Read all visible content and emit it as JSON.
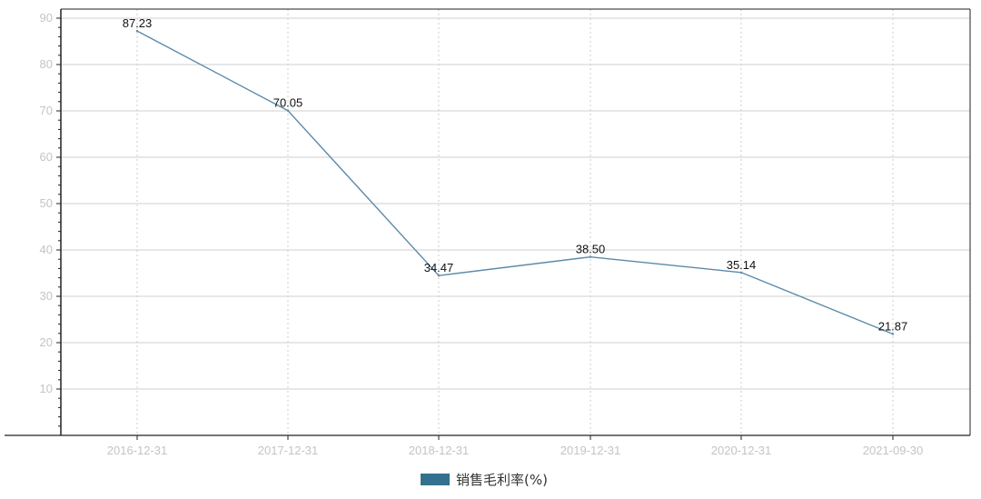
{
  "chart_data": {
    "type": "line",
    "title": "",
    "xlabel": "",
    "ylabel": "",
    "categories": [
      "2016-12-31",
      "2017-12-31",
      "2018-12-31",
      "2019-12-31",
      "2020-12-31",
      "2021-09-30"
    ],
    "series": [
      {
        "name": "销售毛利率(%)",
        "values": [
          87.23,
          70.05,
          34.47,
          38.5,
          35.14,
          21.87
        ],
        "value_labels": [
          "87.23",
          "70.05",
          "34.47",
          "38.50",
          "35.14",
          "21.87"
        ],
        "color": "#5b8aab"
      }
    ],
    "ylim": [
      0,
      90
    ],
    "y_ticks": [
      10,
      20,
      30,
      40,
      50,
      60,
      70,
      80,
      90
    ],
    "y_tick_labels": [
      "10",
      "20",
      "30",
      "40",
      "50",
      "60",
      "70",
      "80",
      "90"
    ],
    "grid": {
      "horizontal": true,
      "vertical": true,
      "vertical_style": "dotted"
    },
    "legend": {
      "position": "bottom-center",
      "swatch_color": "#35708f"
    }
  }
}
